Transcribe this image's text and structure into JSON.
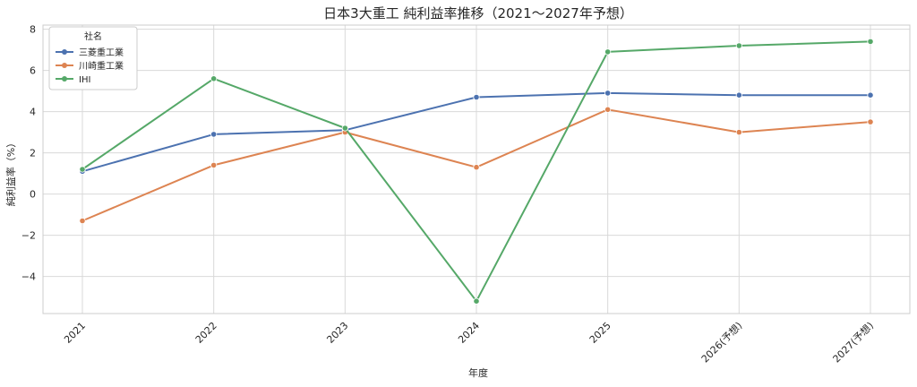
{
  "chart_data": {
    "type": "line",
    "title": "日本3大重工 純利益率推移（2021〜2027年予想）",
    "xlabel": "年度",
    "ylabel": "純利益率（%）",
    "categories": [
      "2021",
      "2022",
      "2023",
      "2024",
      "2025",
      "2026(予想)",
      "2027(予想)"
    ],
    "ylim": [
      -5.8,
      8.2
    ],
    "yticks": [
      -4,
      -2,
      0,
      2,
      4,
      6,
      8
    ],
    "grid": true,
    "legend": {
      "title": "社名",
      "position": "top-left"
    },
    "series": [
      {
        "name": "三菱重工業",
        "color": "#4c72b0",
        "values": [
          1.1,
          2.9,
          3.1,
          4.7,
          4.9,
          4.8,
          4.8
        ]
      },
      {
        "name": "川崎重工業",
        "color": "#dd8452",
        "values": [
          -1.3,
          1.4,
          3.0,
          1.3,
          4.1,
          3.0,
          3.5
        ]
      },
      {
        "name": "IHI",
        "color": "#55a868",
        "values": [
          1.2,
          5.6,
          3.2,
          -5.2,
          6.9,
          7.2,
          7.4
        ]
      }
    ]
  }
}
